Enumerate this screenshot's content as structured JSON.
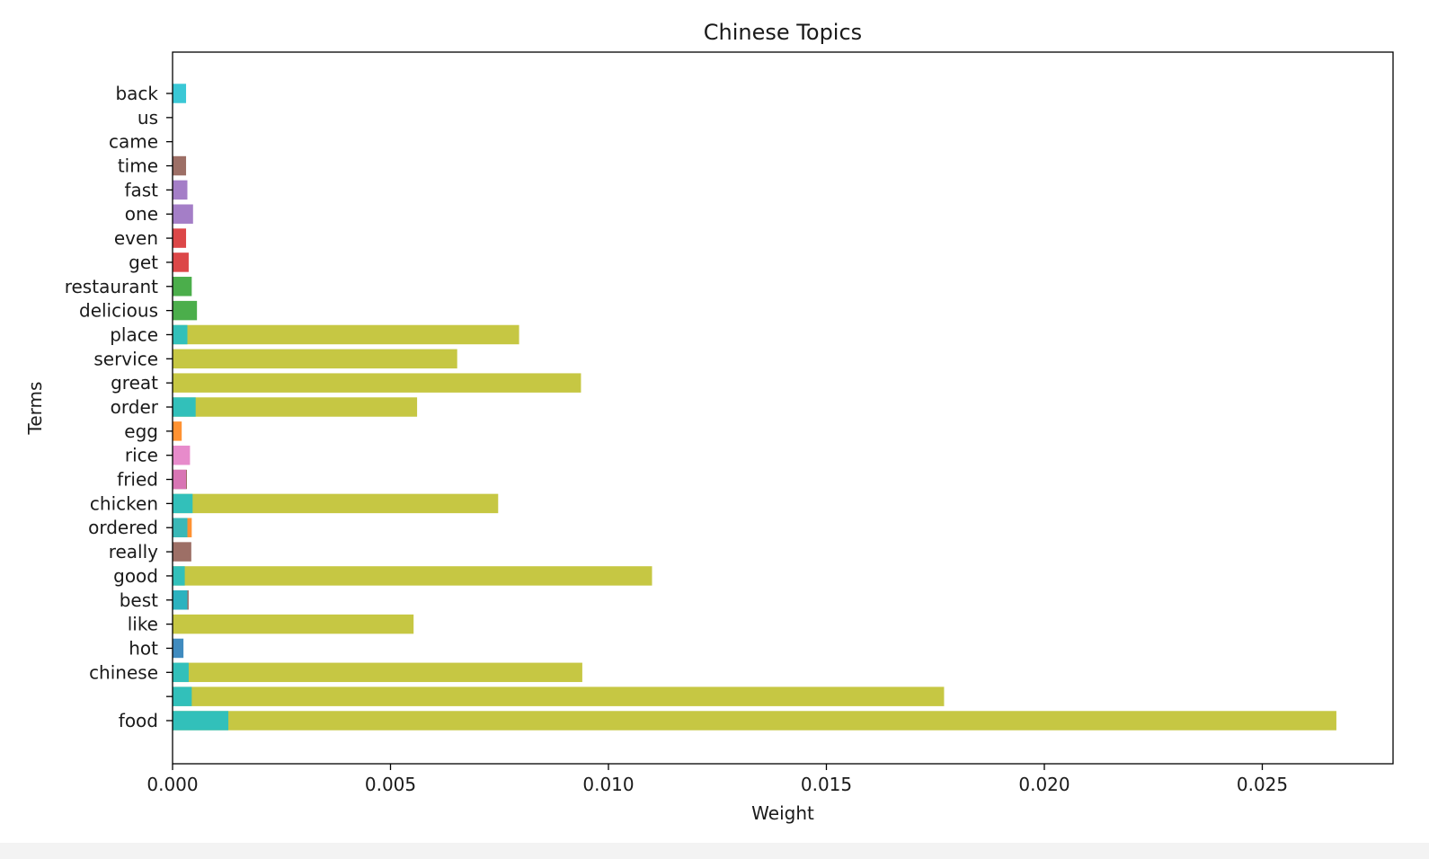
{
  "chart_data": {
    "type": "bar",
    "orientation": "horizontal",
    "stacking": "overlaid",
    "title": "Chinese Topics",
    "xlabel": "Weight",
    "ylabel": "Terms",
    "xlim": [
      0,
      0.028
    ],
    "xticks": [
      0.0,
      0.005,
      0.01,
      0.015,
      0.02,
      0.025
    ],
    "xtick_labels": [
      "0.000",
      "0.005",
      "0.010",
      "0.015",
      "0.020",
      "0.025"
    ],
    "grid": false,
    "categories": [
      "food",
      "",
      "chinese",
      "hot",
      "like",
      "best",
      "good",
      "really",
      "ordered",
      "chicken",
      "fried",
      "rice",
      "egg",
      "order",
      "great",
      "service",
      "place",
      "delicious",
      "restaurant",
      "get",
      "even",
      "one",
      "fast",
      "time",
      "came",
      "us",
      "back"
    ],
    "bars": [
      {
        "term": "food",
        "value": 0.0267,
        "color": "#bcbd22"
      },
      {
        "term": "food",
        "value": 0.00128,
        "color": "#17becf"
      },
      {
        "term": "",
        "value": 0.0177,
        "color": "#bcbd22"
      },
      {
        "term": "",
        "value": 0.00044,
        "color": "#17becf"
      },
      {
        "term": "chinese",
        "value": 0.0094,
        "color": "#bcbd22"
      },
      {
        "term": "chinese",
        "value": 0.00037,
        "color": "#17becf"
      },
      {
        "term": "hot",
        "value": 0.00025,
        "color": "#1f77b4"
      },
      {
        "term": "like",
        "value": 0.00553,
        "color": "#bcbd22"
      },
      {
        "term": "best",
        "value": 0.00037,
        "color": "#8c564b"
      },
      {
        "term": "best",
        "value": 0.00034,
        "color": "#17becf"
      },
      {
        "term": "good",
        "value": 0.011,
        "color": "#bcbd22"
      },
      {
        "term": "good",
        "value": 0.00028,
        "color": "#17becf"
      },
      {
        "term": "really",
        "value": 0.00043,
        "color": "#8c564b"
      },
      {
        "term": "ordered",
        "value": 0.00044,
        "color": "#ff7f0e"
      },
      {
        "term": "ordered",
        "value": 0.00034,
        "color": "#17becf"
      },
      {
        "term": "chicken",
        "value": 0.00747,
        "color": "#bcbd22"
      },
      {
        "term": "chicken",
        "value": 0.00046,
        "color": "#17becf"
      },
      {
        "term": "fried",
        "value": 0.00033,
        "color": "#8c564b"
      },
      {
        "term": "fried",
        "value": 0.00031,
        "color": "#e377c2"
      },
      {
        "term": "rice",
        "value": 0.0004,
        "color": "#e377c2"
      },
      {
        "term": "egg",
        "value": 0.00021,
        "color": "#ff7f0e"
      },
      {
        "term": "order",
        "value": 0.00561,
        "color": "#bcbd22"
      },
      {
        "term": "order",
        "value": 0.00053,
        "color": "#17becf"
      },
      {
        "term": "great",
        "value": 0.00937,
        "color": "#bcbd22"
      },
      {
        "term": "service",
        "value": 0.00653,
        "color": "#bcbd22"
      },
      {
        "term": "place",
        "value": 0.00795,
        "color": "#bcbd22"
      },
      {
        "term": "place",
        "value": 0.00034,
        "color": "#17becf"
      },
      {
        "term": "delicious",
        "value": 0.00056,
        "color": "#2ca02c"
      },
      {
        "term": "restaurant",
        "value": 0.00044,
        "color": "#2ca02c"
      },
      {
        "term": "get",
        "value": 0.00037,
        "color": "#d62728"
      },
      {
        "term": "even",
        "value": 0.00031,
        "color": "#d62728"
      },
      {
        "term": "one",
        "value": 0.00047,
        "color": "#9467bd"
      },
      {
        "term": "fast",
        "value": 0.00034,
        "color": "#9467bd"
      },
      {
        "term": "time",
        "value": 0.00031,
        "color": "#8c564b"
      },
      {
        "term": "back",
        "value": 0.00031,
        "color": "#17becf"
      }
    ]
  }
}
